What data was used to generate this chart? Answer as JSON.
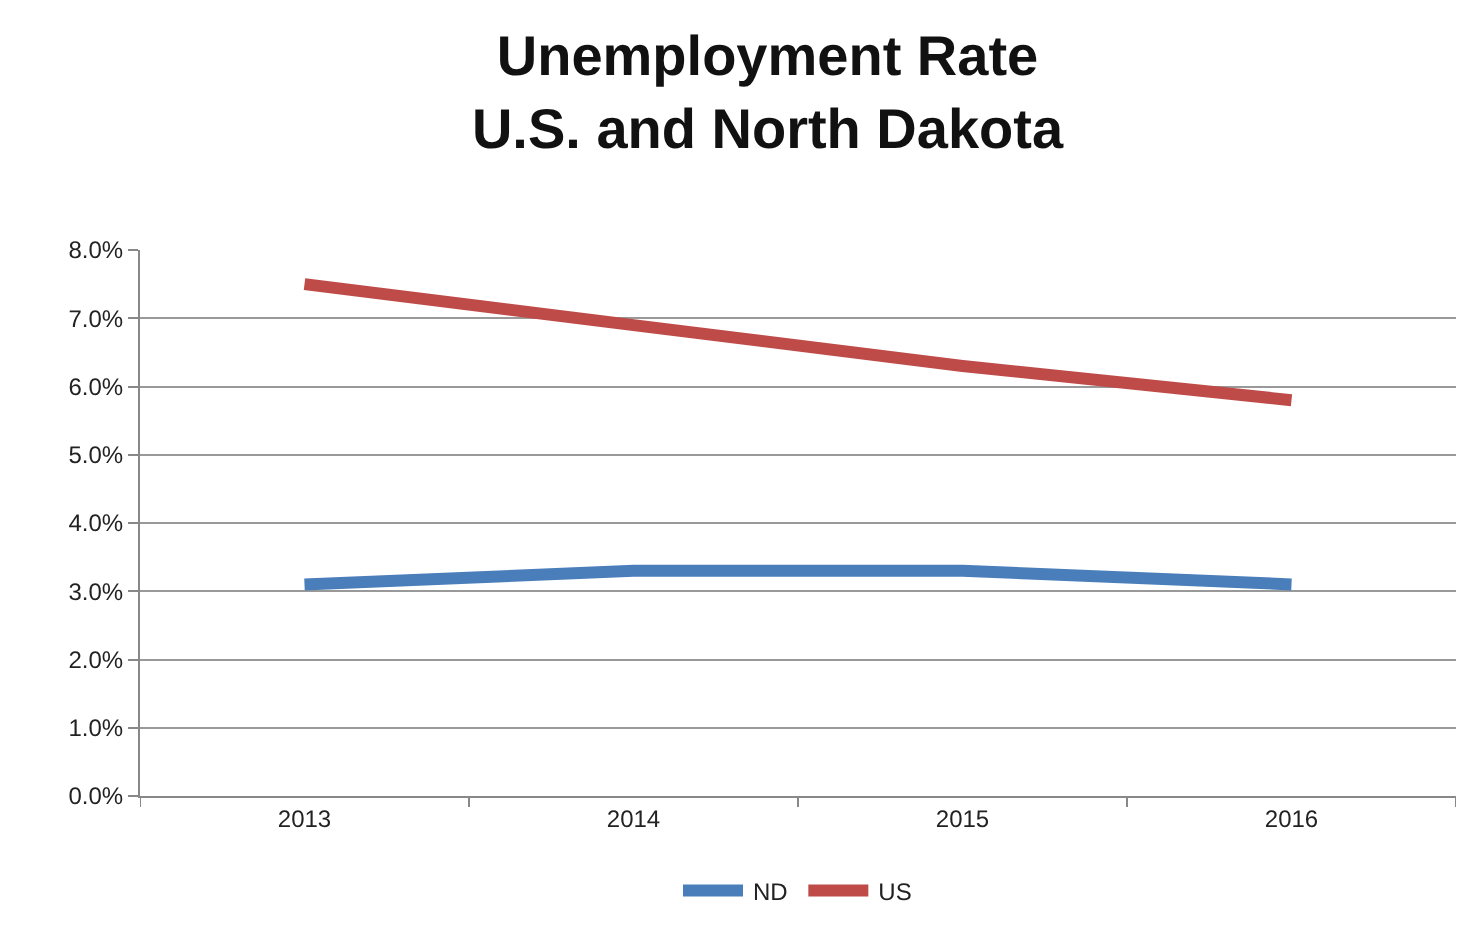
{
  "chart_data": {
    "type": "line",
    "title": "Unemployment Rate\nU.S. and North Dakota",
    "categories": [
      "2013",
      "2014",
      "2015",
      "2016"
    ],
    "series": [
      {
        "name": "ND",
        "color": "#4a7ebb",
        "values": [
          3.1,
          3.3,
          3.3,
          3.1
        ]
      },
      {
        "name": "US",
        "color": "#be4b48",
        "values": [
          7.5,
          6.9,
          6.3,
          5.8
        ]
      }
    ],
    "ylim": [
      0,
      8
    ],
    "yticks": [
      {
        "value": 0,
        "label": "0.0%"
      },
      {
        "value": 1,
        "label": "1.0%"
      },
      {
        "value": 2,
        "label": "2.0%"
      },
      {
        "value": 3,
        "label": "3.0%"
      },
      {
        "value": 4,
        "label": "4.0%"
      },
      {
        "value": 5,
        "label": "5.0%"
      },
      {
        "value": 6,
        "label": "6.0%"
      },
      {
        "value": 7,
        "label": "7.0%"
      },
      {
        "value": 8,
        "label": "8.0%"
      }
    ],
    "grid": "y",
    "legend": "bottom",
    "marker": "none",
    "line_style": "solid"
  }
}
